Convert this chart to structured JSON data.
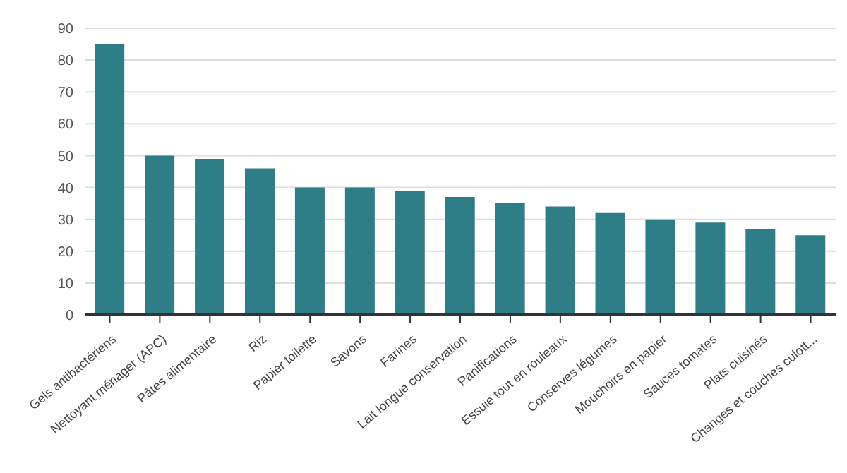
{
  "chart_data": {
    "type": "bar",
    "categories": [
      "Gels antibactériens",
      "Nettoyant ménager (APC)",
      "Pâtes alimentaire",
      "Riz",
      "Papier toilette",
      "Savons",
      "Farines",
      "Lait longue conservation",
      "Panifications",
      "Essuie tout en rouleaux",
      "Conserves légumes",
      "Mouchoirs en papier",
      "Sauces tomates",
      "Plats cuisinés",
      "Changes et couches culott..."
    ],
    "values": [
      85,
      50,
      49,
      46,
      40,
      40,
      39,
      37,
      35,
      34,
      32,
      30,
      29,
      27,
      25
    ],
    "color": "#2e7d87",
    "ylim": [
      0,
      90
    ],
    "yticks": [
      0,
      10,
      20,
      30,
      40,
      50,
      60,
      70,
      80,
      90
    ],
    "grid": "y",
    "legend": false
  }
}
